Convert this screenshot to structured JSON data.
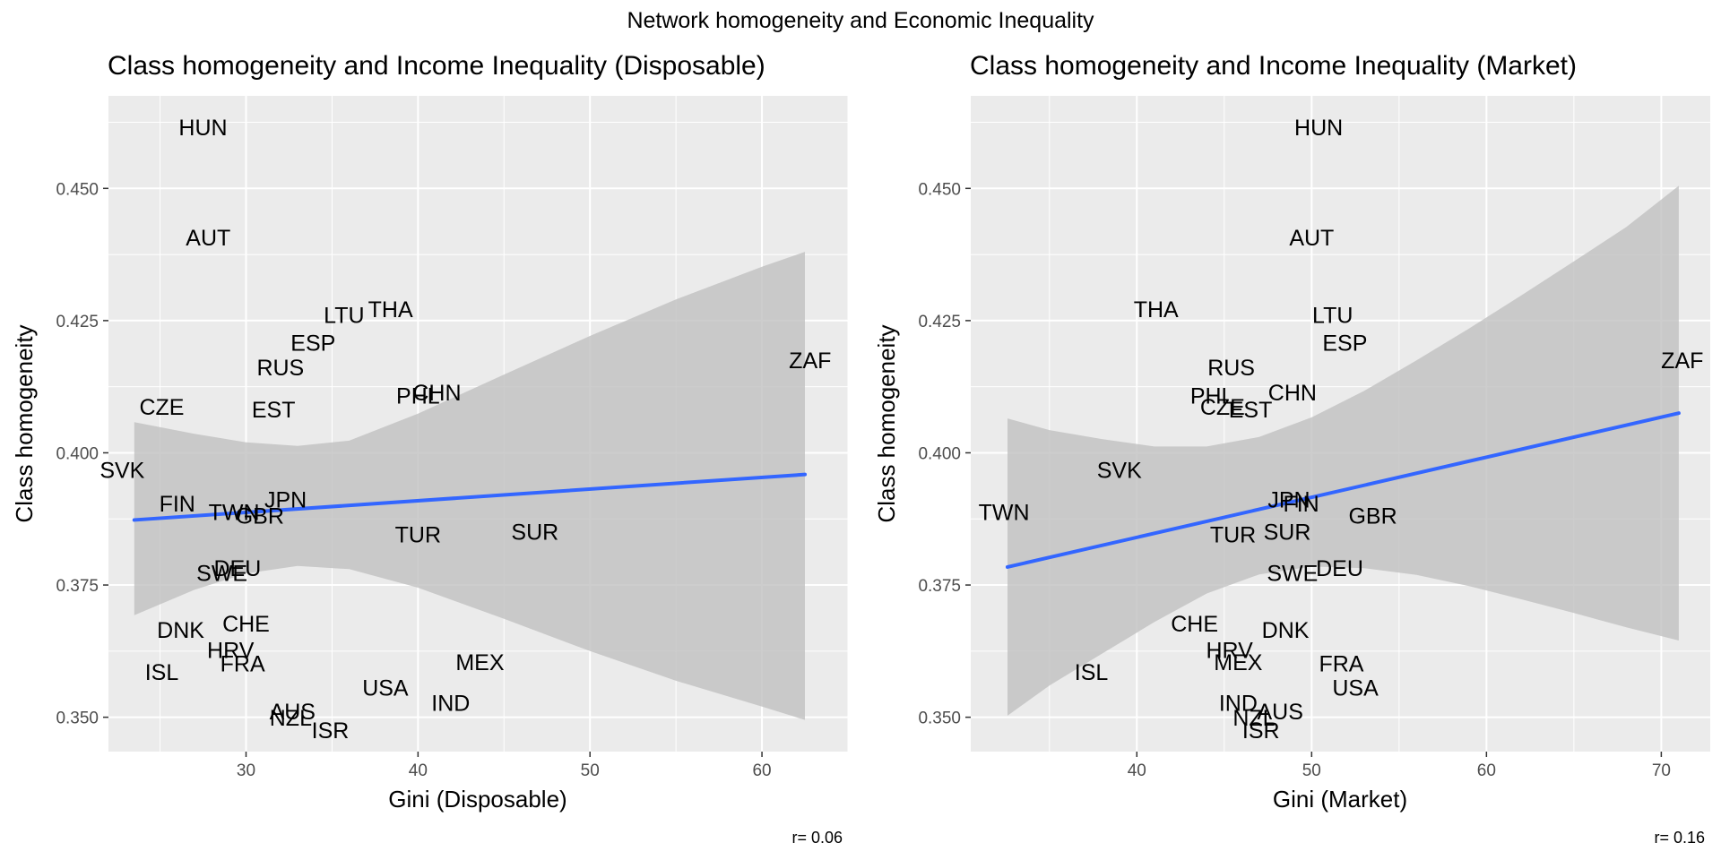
{
  "figure": {
    "suptitle": "Network homogeneity and Economic Inequality"
  },
  "chart_data": [
    {
      "type": "scatter",
      "title": "Class homogeneity and Income Inequality (Disposable)",
      "xlabel": "Gini (Disposable)",
      "ylabel": "Class homogeneity",
      "xlim": [
        22.0,
        65.0
      ],
      "ylim": [
        0.3435,
        0.4675
      ],
      "xticks": [
        30,
        40,
        50,
        60
      ],
      "yticks": [
        0.35,
        0.375,
        0.4,
        0.425,
        0.45
      ],
      "ytick_labels": [
        "0.350",
        "0.375",
        "0.400",
        "0.425",
        "0.450"
      ],
      "grid": true,
      "annotation": "r= 0.06",
      "points": [
        {
          "label": "HUN",
          "x": 27.5,
          "y": 0.4616
        },
        {
          "label": "AUT",
          "x": 27.8,
          "y": 0.4407
        },
        {
          "label": "LTU",
          "x": 35.7,
          "y": 0.4261
        },
        {
          "label": "THA",
          "x": 38.4,
          "y": 0.4272
        },
        {
          "label": "ESP",
          "x": 33.9,
          "y": 0.4208
        },
        {
          "label": "RUS",
          "x": 32.0,
          "y": 0.4162
        },
        {
          "label": "PHL",
          "x": 40.0,
          "y": 0.4108
        },
        {
          "label": "CHN",
          "x": 41.1,
          "y": 0.4114
        },
        {
          "label": "CZE",
          "x": 25.1,
          "y": 0.4087
        },
        {
          "label": "EST",
          "x": 31.6,
          "y": 0.4082
        },
        {
          "label": "ZAF",
          "x": 62.8,
          "y": 0.4175
        },
        {
          "label": "SVK",
          "x": 22.8,
          "y": 0.3968
        },
        {
          "label": "FIN",
          "x": 26.0,
          "y": 0.3904
        },
        {
          "label": "TWN",
          "x": 29.3,
          "y": 0.3888
        },
        {
          "label": "JPN",
          "x": 32.3,
          "y": 0.3912
        },
        {
          "label": "GBR",
          "x": 30.8,
          "y": 0.3881
        },
        {
          "label": "TUR",
          "x": 40.0,
          "y": 0.3846
        },
        {
          "label": "SUR",
          "x": 46.8,
          "y": 0.3851
        },
        {
          "label": "DEU",
          "x": 29.5,
          "y": 0.3782
        },
        {
          "label": "SWE",
          "x": 28.6,
          "y": 0.3773
        },
        {
          "label": "DNK",
          "x": 26.2,
          "y": 0.3665
        },
        {
          "label": "CHE",
          "x": 30.0,
          "y": 0.3677
        },
        {
          "label": "HRV",
          "x": 29.1,
          "y": 0.3627
        },
        {
          "label": "FRA",
          "x": 29.8,
          "y": 0.3602
        },
        {
          "label": "ISL",
          "x": 25.1,
          "y": 0.3586
        },
        {
          "label": "MEX",
          "x": 43.6,
          "y": 0.3604
        },
        {
          "label": "USA",
          "x": 38.1,
          "y": 0.3556
        },
        {
          "label": "IND",
          "x": 41.9,
          "y": 0.3527
        },
        {
          "label": "AUS",
          "x": 32.7,
          "y": 0.3511
        },
        {
          "label": "NZL",
          "x": 32.6,
          "y": 0.3499
        },
        {
          "label": "ISR",
          "x": 34.9,
          "y": 0.3476
        }
      ],
      "fit": {
        "x0": 23.5,
        "y0": 0.3873,
        "x1": 62.5,
        "y1": 0.3959
      },
      "ci_band": [
        {
          "x": 23.5,
          "lo": 0.3693,
          "hi": 0.4058
        },
        {
          "x": 27.0,
          "lo": 0.3741,
          "hi": 0.4036
        },
        {
          "x": 30.0,
          "lo": 0.3772,
          "hi": 0.402
        },
        {
          "x": 33.0,
          "lo": 0.3786,
          "hi": 0.4013
        },
        {
          "x": 36.0,
          "lo": 0.378,
          "hi": 0.4023
        },
        {
          "x": 40.0,
          "lo": 0.3745,
          "hi": 0.4074
        },
        {
          "x": 45.0,
          "lo": 0.3686,
          "hi": 0.4148
        },
        {
          "x": 50.0,
          "lo": 0.3625,
          "hi": 0.4221
        },
        {
          "x": 55.0,
          "lo": 0.3569,
          "hi": 0.429
        },
        {
          "x": 60.0,
          "lo": 0.352,
          "hi": 0.4352
        },
        {
          "x": 62.5,
          "lo": 0.3495,
          "hi": 0.438
        }
      ],
      "colors": {
        "panel": "#ebebeb",
        "grid": "#ffffff",
        "band": "#bfbfbf",
        "line": "#3366ff",
        "text": "#000000"
      }
    },
    {
      "type": "scatter",
      "title": "Class homogeneity and Income Inequality (Market)",
      "xlabel": "Gini (Market)",
      "ylabel": "Class homogeneity",
      "xlim": [
        30.5,
        72.8
      ],
      "ylim": [
        0.3435,
        0.4675
      ],
      "xticks": [
        40,
        50,
        60,
        70
      ],
      "yticks": [
        0.35,
        0.375,
        0.4,
        0.425,
        0.45
      ],
      "ytick_labels": [
        "0.350",
        "0.375",
        "0.400",
        "0.425",
        "0.450"
      ],
      "grid": true,
      "annotation": "r= 0.16",
      "points": [
        {
          "label": "HUN",
          "x": 50.4,
          "y": 0.4616
        },
        {
          "label": "AUT",
          "x": 50.0,
          "y": 0.4407
        },
        {
          "label": "THA",
          "x": 41.1,
          "y": 0.4272
        },
        {
          "label": "LTU",
          "x": 51.2,
          "y": 0.4261
        },
        {
          "label": "ESP",
          "x": 51.9,
          "y": 0.4208
        },
        {
          "label": "RUS",
          "x": 45.4,
          "y": 0.4162
        },
        {
          "label": "PHL",
          "x": 44.3,
          "y": 0.4108
        },
        {
          "label": "CZE",
          "x": 44.9,
          "y": 0.4087
        },
        {
          "label": "CHN",
          "x": 48.9,
          "y": 0.4114
        },
        {
          "label": "EST",
          "x": 46.5,
          "y": 0.4082
        },
        {
          "label": "ZAF",
          "x": 71.2,
          "y": 0.4175
        },
        {
          "label": "SVK",
          "x": 39.0,
          "y": 0.3968
        },
        {
          "label": "TWN",
          "x": 32.4,
          "y": 0.3888
        },
        {
          "label": "JPN",
          "x": 48.7,
          "y": 0.3912
        },
        {
          "label": "FIN",
          "x": 49.4,
          "y": 0.3904
        },
        {
          "label": "GBR",
          "x": 53.5,
          "y": 0.3881
        },
        {
          "label": "TUR",
          "x": 45.5,
          "y": 0.3846
        },
        {
          "label": "SUR",
          "x": 48.6,
          "y": 0.3851
        },
        {
          "label": "SWE",
          "x": 48.9,
          "y": 0.3773
        },
        {
          "label": "DEU",
          "x": 51.6,
          "y": 0.3782
        },
        {
          "label": "CHE",
          "x": 43.3,
          "y": 0.3677
        },
        {
          "label": "DNK",
          "x": 48.5,
          "y": 0.3665
        },
        {
          "label": "HRV",
          "x": 45.3,
          "y": 0.3627
        },
        {
          "label": "MEX",
          "x": 45.8,
          "y": 0.3604
        },
        {
          "label": "FRA",
          "x": 51.7,
          "y": 0.3602
        },
        {
          "label": "ISL",
          "x": 37.4,
          "y": 0.3586
        },
        {
          "label": "USA",
          "x": 52.5,
          "y": 0.3556
        },
        {
          "label": "IND",
          "x": 45.8,
          "y": 0.3527
        },
        {
          "label": "AUS",
          "x": 48.2,
          "y": 0.3511
        },
        {
          "label": "NZL",
          "x": 46.7,
          "y": 0.3499
        },
        {
          "label": "ISR",
          "x": 47.1,
          "y": 0.3476
        }
      ],
      "fit": {
        "x0": 32.6,
        "y0": 0.3784,
        "x1": 71.0,
        "y1": 0.4075
      },
      "ci_band": [
        {
          "x": 32.6,
          "lo": 0.3503,
          "hi": 0.4065
        },
        {
          "x": 35.0,
          "lo": 0.356,
          "hi": 0.4043
        },
        {
          "x": 38.0,
          "lo": 0.362,
          "hi": 0.4026
        },
        {
          "x": 41.0,
          "lo": 0.368,
          "hi": 0.4012
        },
        {
          "x": 44.0,
          "lo": 0.3734,
          "hi": 0.4012
        },
        {
          "x": 47.0,
          "lo": 0.377,
          "hi": 0.403
        },
        {
          "x": 50.0,
          "lo": 0.3785,
          "hi": 0.4067
        },
        {
          "x": 53.0,
          "lo": 0.3782,
          "hi": 0.4117
        },
        {
          "x": 56.0,
          "lo": 0.3769,
          "hi": 0.4175
        },
        {
          "x": 59.0,
          "lo": 0.3748,
          "hi": 0.4235
        },
        {
          "x": 62.0,
          "lo": 0.3723,
          "hi": 0.4298
        },
        {
          "x": 65.0,
          "lo": 0.3697,
          "hi": 0.4362
        },
        {
          "x": 68.0,
          "lo": 0.367,
          "hi": 0.4427
        },
        {
          "x": 71.0,
          "lo": 0.3645,
          "hi": 0.4505
        }
      ],
      "colors": {
        "panel": "#ebebeb",
        "grid": "#ffffff",
        "band": "#bfbfbf",
        "line": "#3366ff",
        "text": "#000000"
      }
    }
  ]
}
